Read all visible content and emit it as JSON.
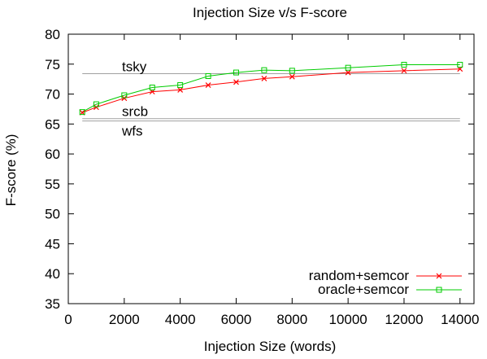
{
  "chart_data": {
    "type": "line",
    "title": "Injection Size v/s F-score",
    "xlabel": "Injection Size (words)",
    "ylabel": "F-score (%)",
    "xlim": [
      0,
      14500
    ],
    "ylim": [
      35,
      80
    ],
    "x_ticks": [
      0,
      2000,
      4000,
      6000,
      8000,
      10000,
      12000,
      14000
    ],
    "x_tick_labels": [
      "0",
      "2000",
      "4000",
      "6000",
      "8000",
      "10000",
      "12000",
      "14000"
    ],
    "y_ticks": [
      35,
      40,
      45,
      50,
      55,
      60,
      65,
      70,
      75,
      80
    ],
    "y_tick_labels": [
      "35",
      "40",
      "45",
      "50",
      "55",
      "60",
      "65",
      "70",
      "75",
      "80"
    ],
    "grid": false,
    "legend_position": "bottom-right",
    "series": [
      {
        "name": "random+semcor",
        "color": "#ff0000",
        "marker": "x",
        "x": [
          500,
          1000,
          2000,
          3000,
          4000,
          5000,
          6000,
          7000,
          8000,
          10000,
          12000,
          14000
        ],
        "y": [
          66.9,
          67.8,
          69.3,
          70.4,
          70.7,
          71.5,
          72.0,
          72.6,
          72.9,
          73.6,
          73.9,
          74.2
        ]
      },
      {
        "name": "oracle+semcor",
        "color": "#00cc00",
        "marker": "square",
        "x": [
          500,
          1000,
          2000,
          3000,
          4000,
          5000,
          6000,
          7000,
          8000,
          10000,
          12000,
          14000
        ],
        "y": [
          67.0,
          68.3,
          69.8,
          71.1,
          71.5,
          73.0,
          73.6,
          74.0,
          73.9,
          74.4,
          74.9,
          74.9
        ]
      }
    ],
    "baselines": [
      {
        "label": "tsky",
        "y": 73.4,
        "color": "#a0a0a0"
      },
      {
        "label": "srcb",
        "y": 65.9,
        "color": "#a0a0a0"
      },
      {
        "label": "wfs",
        "y": 65.5,
        "color": "#a0a0a0"
      }
    ],
    "baseline_x_range": [
      500,
      14000
    ]
  }
}
